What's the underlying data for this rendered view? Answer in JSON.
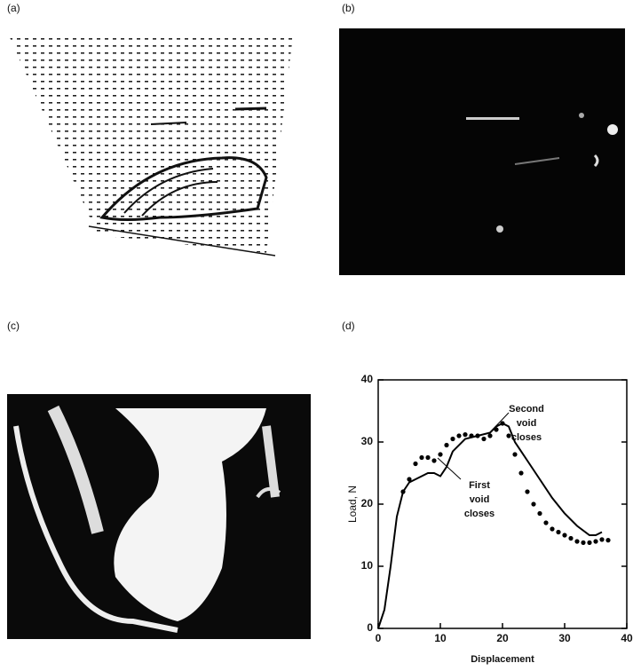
{
  "panels": {
    "a": "(a)",
    "b": "(b)",
    "c": "(c)",
    "d": "(d)"
  },
  "chart_data": {
    "type": "line",
    "x_label": "Displacement",
    "y_label": "Load, N",
    "xlim": [
      0,
      40
    ],
    "xticks": [
      0,
      10,
      20,
      30,
      40
    ],
    "ylim": [
      0,
      40
    ],
    "yticks": [
      0,
      10,
      20,
      30,
      40
    ],
    "annotations": [
      {
        "lines": [
          "Second",
          "void",
          "closes"
        ]
      },
      {
        "lines": [
          "First",
          "void",
          "closes"
        ]
      }
    ],
    "series": [
      {
        "style": "solid",
        "color": "#000000",
        "x": [
          0,
          1,
          2,
          3,
          4,
          5,
          6,
          7,
          8,
          9,
          10,
          11,
          12,
          14,
          16,
          18,
          19,
          20,
          21,
          22,
          24,
          26,
          28,
          30,
          32,
          34,
          35,
          36
        ],
        "values": [
          0,
          3,
          10,
          18,
          22,
          23.5,
          24,
          24.5,
          25,
          25,
          24.5,
          26,
          28.5,
          30.5,
          31,
          31.5,
          32.5,
          33,
          32.5,
          30,
          27,
          24,
          21,
          18.5,
          16.5,
          15,
          15,
          15.5
        ]
      },
      {
        "style": "dotted",
        "color": "#000000",
        "x": [
          4,
          5,
          6,
          7,
          8,
          9,
          10,
          11,
          12,
          13,
          14,
          15,
          16,
          17,
          18,
          19,
          20,
          21,
          22,
          23,
          24,
          25,
          26,
          27,
          28,
          29,
          30,
          31,
          32,
          33,
          34,
          35,
          36,
          37
        ],
        "values": [
          22,
          24,
          26.5,
          27.5,
          27.5,
          27,
          28,
          29.5,
          30.5,
          31,
          31.2,
          31,
          31,
          30.5,
          31,
          32,
          33,
          31,
          28,
          25,
          22,
          20,
          18.5,
          17,
          16,
          15.5,
          15,
          14.5,
          14,
          13.8,
          13.8,
          14,
          14.3,
          14.2
        ]
      }
    ]
  }
}
